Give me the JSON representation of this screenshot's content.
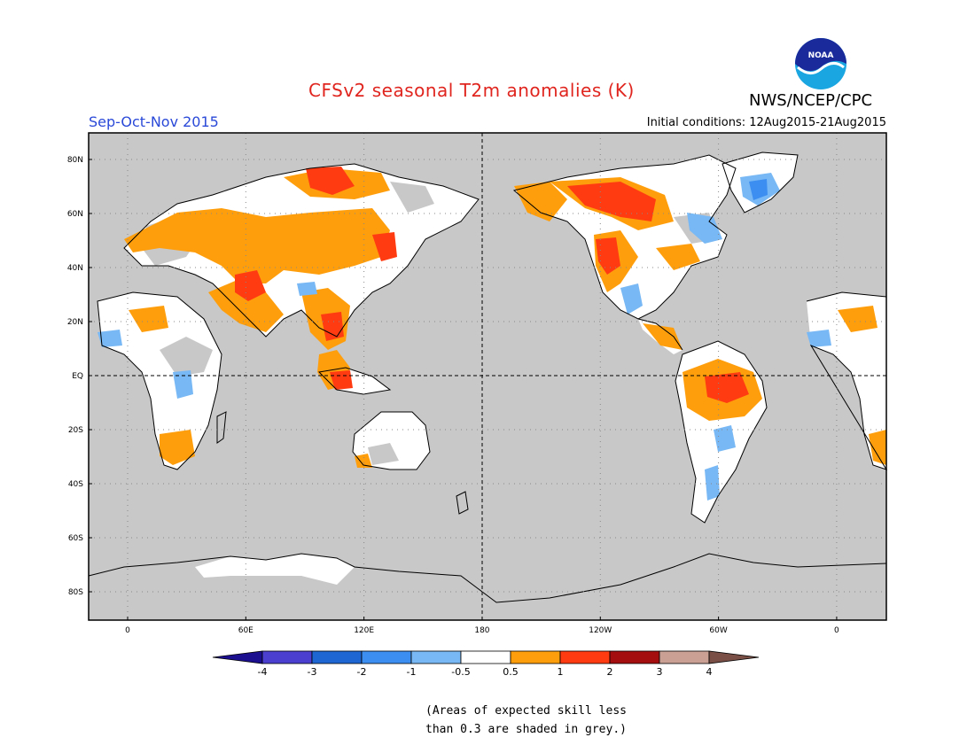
{
  "title": "CFSv2 seasonal T2m anomalies (K)",
  "agency": "NWS/NCEP/CPC",
  "logo_text": "NOAA",
  "season": "Sep-Oct-Nov 2015",
  "initial_conditions": "Initial conditions: 12Aug2015-21Aug2015",
  "lat_labels": [
    "80N",
    "60N",
    "40N",
    "20N",
    "EQ",
    "20S",
    "40S",
    "60S",
    "80S"
  ],
  "lon_labels": [
    "0",
    "60E",
    "120E",
    "180",
    "120W",
    "60W",
    "0"
  ],
  "colorbar": {
    "labels": [
      "-4",
      "-3",
      "-2",
      "-1",
      "-0.5",
      "0.5",
      "1",
      "2",
      "3",
      "4"
    ],
    "colors": [
      "#1c0f8f",
      "#4a3fcf",
      "#1e66d2",
      "#3c8ef0",
      "#78b8f4",
      "#ffffff",
      "#ff9e0c",
      "#ff3b12",
      "#a50e0e",
      "#c9a093",
      "#7a5046"
    ]
  },
  "note_line1": "(Areas of expected skill less",
  "note_line2": "than 0.3 are shaded in grey.)"
}
